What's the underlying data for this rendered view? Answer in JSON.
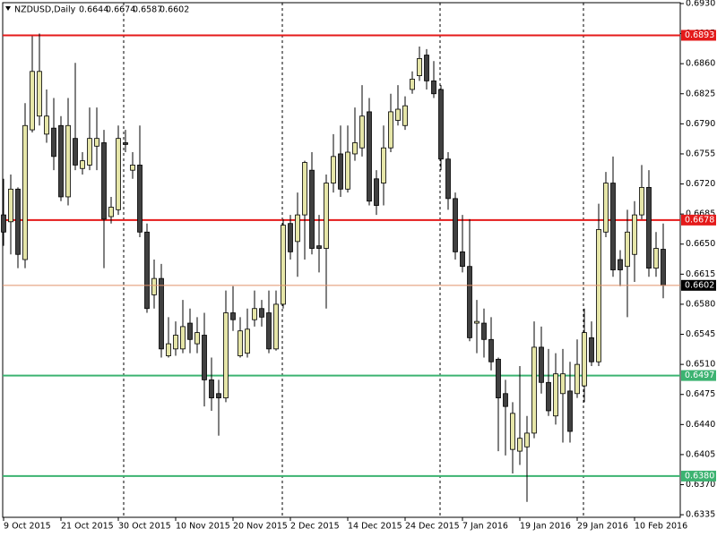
{
  "chart_data": {
    "type": "candlestick",
    "title": "NZDUSD,Daily",
    "categories": [
      "9 Oct 2015",
      null,
      null,
      null,
      null,
      null,
      null,
      null,
      "21 Oct 2015",
      null,
      null,
      null,
      null,
      null,
      null,
      null,
      "30 Oct 2015",
      null,
      null,
      null,
      null,
      null,
      null,
      null,
      "10 Nov 2015",
      null,
      null,
      null,
      null,
      null,
      null,
      null,
      "20 Nov 2015",
      null,
      null,
      null,
      null,
      null,
      null,
      null,
      "2 Dec 2015",
      null,
      null,
      null,
      null,
      null,
      null,
      null,
      "14 Dec 2015",
      null,
      null,
      null,
      null,
      null,
      null,
      null,
      "24 Dec 2015",
      null,
      null,
      null,
      null,
      null,
      null,
      null,
      "7 Jan 2016",
      null,
      null,
      null,
      null,
      null,
      null,
      null,
      "19 Jan 2016",
      null,
      null,
      null,
      null,
      null,
      null,
      null,
      "29 Jan 2016",
      null,
      null,
      null,
      null,
      null,
      null,
      null,
      "10 Feb 2016",
      null,
      null,
      null,
      null
    ],
    "open": [
      0.6684,
      0.6676,
      0.6714,
      0.6632,
      0.6783,
      0.6799,
      0.6778,
      0.6785,
      0.6788,
      0.6705,
      0.6773,
      0.6738,
      0.6742,
      0.6764,
      0.6768,
      0.6682,
      0.669,
      0.6768,
      0.6736,
      0.6742,
      0.6664,
      0.6591,
      0.661,
      0.652,
      0.6528,
      0.6528,
      0.6558,
      0.6534,
      0.6544,
      0.6492,
      0.6476,
      0.6471,
      0.657,
      0.652,
      0.6523,
      0.6562,
      0.6575,
      0.657,
      0.6528,
      0.658,
      0.6674,
      0.6653,
      0.6684,
      0.6736,
      0.6648,
      0.6645,
      0.6721,
      0.6755,
      0.6714,
      0.6755,
      0.6762,
      0.6804,
      0.6726,
      0.6721,
      0.6762,
      0.6794,
      0.6788,
      0.683,
      0.6846,
      0.687,
      0.684,
      0.683,
      0.6749,
      0.6703,
      0.6641,
      0.6624,
      0.6558,
      0.6558,
      0.6539,
      0.6516,
      0.6476,
      0.6411,
      0.6409,
      0.6414,
      0.643,
      0.653,
      0.6489,
      0.645,
      0.6476,
      0.6479,
      0.6476,
      0.6485,
      0.6541,
      0.6513,
      0.6664,
      0.6721,
      0.6632,
      0.6624,
      0.6638,
      0.6684,
      0.6716,
      0.6622,
      0.6644
    ],
    "high": [
      0.6726,
      0.6731,
      0.6716,
      0.6814,
      0.6892,
      0.6895,
      0.683,
      0.682,
      0.6799,
      0.682,
      0.6861,
      0.6757,
      0.6809,
      0.6809,
      0.6783,
      0.6705,
      0.6788,
      0.6783,
      0.6757,
      0.6788,
      0.6674,
      0.6632,
      0.6627,
      0.6565,
      0.656,
      0.6585,
      0.6575,
      0.6565,
      0.657,
      0.6518,
      0.6492,
      0.6596,
      0.6601,
      0.6565,
      0.6575,
      0.6596,
      0.6585,
      0.6596,
      0.6596,
      0.6679,
      0.6684,
      0.671,
      0.6747,
      0.6757,
      0.6684,
      0.6731,
      0.6778,
      0.6788,
      0.6788,
      0.6809,
      0.6835,
      0.682,
      0.6736,
      0.6788,
      0.6825,
      0.6835,
      0.6822,
      0.6851,
      0.688,
      0.6877,
      0.6863,
      0.6835,
      0.6757,
      0.671,
      0.6684,
      0.6679,
      0.6585,
      0.6575,
      0.6565,
      0.6518,
      0.6492,
      0.6466,
      0.6508,
      0.645,
      0.656,
      0.6554,
      0.6528,
      0.6523,
      0.6528,
      0.6513,
      0.6539,
      0.6575,
      0.656,
      0.6697,
      0.6734,
      0.6752,
      0.6643,
      0.669,
      0.67,
      0.6742,
      0.6736,
      0.6664,
      0.6674
    ],
    "low": [
      0.6648,
      0.6638,
      0.6622,
      0.6622,
      0.678,
      0.6788,
      0.6768,
      0.6736,
      0.67,
      0.6695,
      0.6736,
      0.6731,
      0.6736,
      0.6736,
      0.6622,
      0.6674,
      0.6684,
      0.6757,
      0.6726,
      0.6658,
      0.657,
      0.6575,
      0.6518,
      0.6518,
      0.652,
      0.6523,
      0.6523,
      0.6523,
      0.6461,
      0.6456,
      0.6427,
      0.6466,
      0.6549,
      0.6518,
      0.6518,
      0.6554,
      0.6554,
      0.6523,
      0.6526,
      0.6575,
      0.6632,
      0.6612,
      0.6632,
      0.6638,
      0.6617,
      0.6575,
      0.671,
      0.6705,
      0.671,
      0.6747,
      0.6752,
      0.6695,
      0.6684,
      0.6695,
      0.6757,
      0.6788,
      0.6783,
      0.6825,
      0.684,
      0.683,
      0.682,
      0.6736,
      0.669,
      0.6632,
      0.6617,
      0.6537,
      0.6523,
      0.6518,
      0.6503,
      0.6409,
      0.6404,
      0.6383,
      0.6393,
      0.635,
      0.6424,
      0.6476,
      0.645,
      0.644,
      0.6419,
      0.6419,
      0.6471,
      0.6466,
      0.6508,
      0.6508,
      0.6658,
      0.6612,
      0.6601,
      0.6565,
      0.6606,
      0.6679,
      0.6612,
      0.6612,
      0.6587
    ],
    "close": [
      0.6664,
      0.6714,
      0.6638,
      0.6788,
      0.6851,
      0.6851,
      0.6799,
      0.6752,
      0.6705,
      0.6788,
      0.6742,
      0.6747,
      0.6773,
      0.6773,
      0.6679,
      0.6693,
      0.6773,
      0.6766,
      0.6742,
      0.6664,
      0.6575,
      0.661,
      0.6528,
      0.6534,
      0.6544,
      0.6554,
      0.6539,
      0.6547,
      0.6492,
      0.6471,
      0.6471,
      0.657,
      0.6562,
      0.6549,
      0.6551,
      0.6575,
      0.6565,
      0.6528,
      0.658,
      0.6672,
      0.6641,
      0.6684,
      0.6745,
      0.6645,
      0.6645,
      0.6721,
      0.6752,
      0.6714,
      0.6757,
      0.6768,
      0.6799,
      0.67,
      0.6695,
      0.6762,
      0.6804,
      0.6807,
      0.6811,
      0.6842,
      0.6866,
      0.684,
      0.6825,
      0.6749,
      0.6703,
      0.6641,
      0.6624,
      0.6541,
      0.656,
      0.6539,
      0.6513,
      0.6471,
      0.6461,
      0.6453,
      0.6424,
      0.643,
      0.653,
      0.6489,
      0.6456,
      0.6499,
      0.6499,
      0.6432,
      0.651,
      0.6547,
      0.6513,
      0.6667,
      0.6721,
      0.662,
      0.662,
      0.6664,
      0.6684,
      0.6716,
      0.6622,
      0.6645,
      0.6602
    ],
    "up_color": "#e6e6a8",
    "down_color": "#404040",
    "ylim": [
      0.6332,
      0.6931
    ],
    "yticks": [
      {
        "value": 0.693,
        "label": "0.6930"
      },
      0.6895,
      {
        "value": 0.686,
        "label": "0.6860"
      },
      0.6825,
      {
        "value": 0.679,
        "label": "0.6790"
      },
      0.6755,
      {
        "value": 0.672,
        "label": "0.6720"
      },
      0.6685,
      {
        "value": 0.665,
        "label": "0.6650"
      },
      0.6615,
      {
        "value": 0.658,
        "label": "0.6580"
      },
      0.6545,
      {
        "value": 0.651,
        "label": "0.6510"
      },
      0.6475,
      {
        "value": 0.644,
        "label": "0.6440"
      },
      0.6405,
      {
        "value": 0.637,
        "label": "0.6370"
      },
      0.6335
    ],
    "levels": [
      {
        "value": 0.6893,
        "color": "#e41a1a"
      },
      {
        "value": 0.6678,
        "color": "#e41a1a"
      },
      {
        "value": 0.6497,
        "color": "#3cb371"
      },
      {
        "value": 0.638,
        "label": "0.6380",
        "color": "#3cb371"
      }
    ],
    "last_price_color": "#e0906a"
  }
}
